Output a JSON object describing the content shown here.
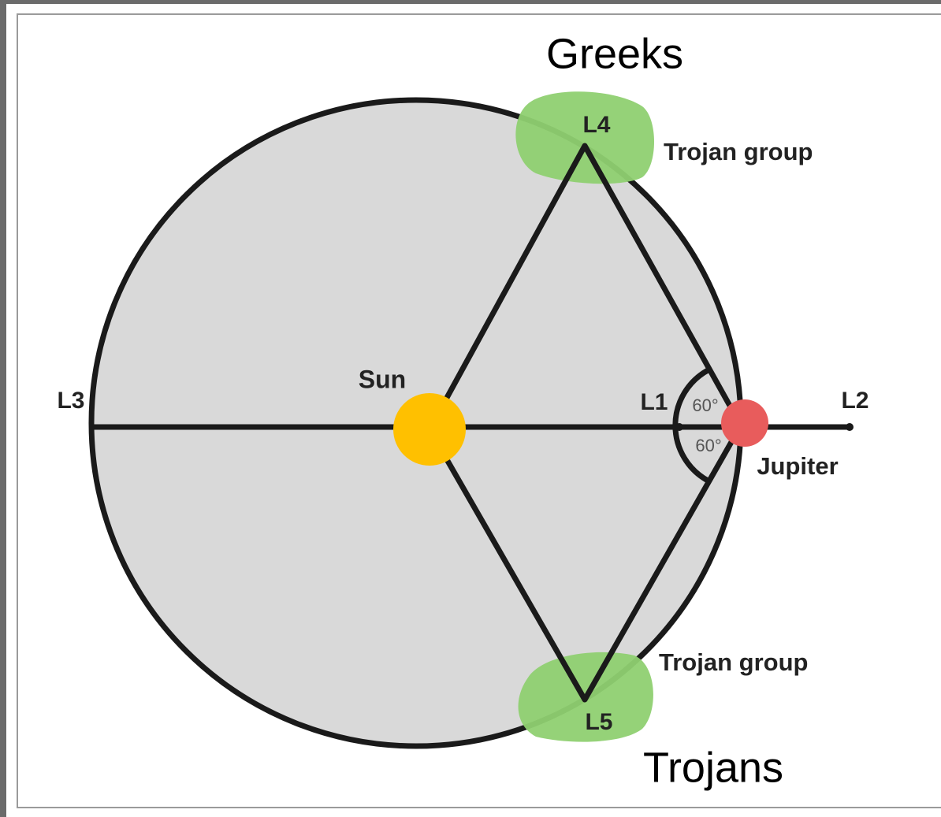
{
  "labels": {
    "greeks": "Greeks",
    "trojans": "Trojans",
    "trojan_group_top": "Trojan group",
    "trojan_group_bottom": "Trojan group",
    "l1": "L1",
    "l2": "L2",
    "l3": "L3",
    "l4": "L4",
    "l5": "L5",
    "sun": "Sun",
    "jupiter": "Jupiter",
    "angle_top": "60°",
    "angle_bottom": "60°"
  }
}
